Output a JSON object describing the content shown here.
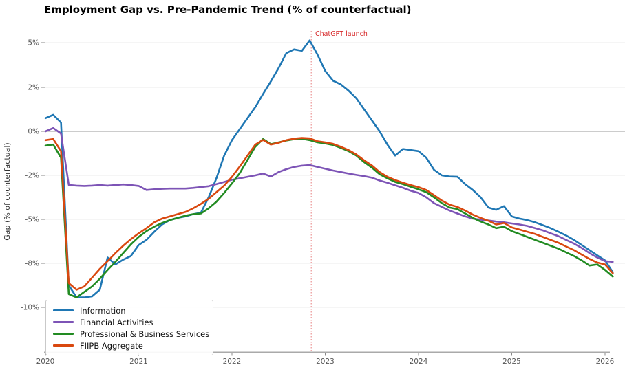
{
  "title": "Employment Gap vs. Pre-Pandemic Trend (% of counterfactual)",
  "axes": {
    "ylabel": "Gap (% of counterfactual)",
    "x_tick_labels": [
      "2020",
      "2021",
      "2022",
      "2023",
      "2024",
      "2025",
      "2026"
    ],
    "y_tick_labels": [
      "5%",
      "2%",
      "0%",
      "-2%",
      "-5%",
      "-8%",
      "-10%"
    ],
    "y_tick_values": [
      5,
      2,
      0,
      -2,
      -5,
      -8,
      -10
    ]
  },
  "annotation": {
    "label": "ChatGPT launch",
    "x_year": 2022.85,
    "color": "#d62728"
  },
  "style_colors": {
    "grid": "#ebebeb",
    "zero_line": "#9a9a9a",
    "spine": "#aaaaaa",
    "tick_text": "#555555",
    "title_text": "#000000"
  },
  "chart_data": {
    "type": "line",
    "title": "Employment Gap vs. Pre-Pandemic Trend (% of counterfactual)",
    "xlabel": "",
    "ylabel": "Gap (% of counterfactual)",
    "x_start_year": 2020,
    "x_step_months": 1,
    "x_tick_years": [
      2020,
      2021,
      2022,
      2023,
      2024,
      2025,
      2026
    ],
    "y_ticks": [
      5,
      2,
      0,
      -2,
      -5,
      -8,
      -10
    ],
    "grid": "horizontal",
    "legend_position": "lower left",
    "annotation": {
      "label": "ChatGPT launch",
      "x_year": 2022.85
    },
    "series": [
      {
        "name": "Information",
        "color": "#1f77b4",
        "values": [
          0.6,
          0.75,
          0.4,
          -9.0,
          -9.55,
          -9.55,
          -9.5,
          -9.2,
          -7.6,
          -8.05,
          -7.75,
          -7.5,
          -6.75,
          -6.4,
          -5.85,
          -5.35,
          -5.05,
          -4.9,
          -4.8,
          -4.65,
          -4.55,
          -3.5,
          -2.2,
          -1.1,
          -0.4,
          0.1,
          0.6,
          1.1,
          1.7,
          2.4,
          3.3,
          4.3,
          4.55,
          4.45,
          5.15,
          4.2,
          3.1,
          2.45,
          2.2,
          1.85,
          1.5,
          1.0,
          0.5,
          0.0,
          -0.6,
          -1.1,
          -0.8,
          -0.85,
          -0.9,
          -1.2,
          -1.75,
          -2.0,
          -2.08,
          -2.1,
          -2.6,
          -3.0,
          -3.5,
          -4.2,
          -4.35,
          -4.1,
          -4.8,
          -4.95,
          -5.05,
          -5.2,
          -5.4,
          -5.6,
          -5.85,
          -6.1,
          -6.4,
          -6.75,
          -7.1,
          -7.45,
          -7.8,
          -8.4
        ]
      },
      {
        "name": "Financial Activities",
        "color": "#7d54b6",
        "values": [
          0.0,
          0.15,
          -0.1,
          -2.65,
          -2.7,
          -2.72,
          -2.7,
          -2.66,
          -2.7,
          -2.66,
          -2.62,
          -2.66,
          -2.72,
          -3.0,
          -2.95,
          -2.92,
          -2.9,
          -2.9,
          -2.9,
          -2.86,
          -2.8,
          -2.74,
          -2.6,
          -2.45,
          -2.3,
          -2.2,
          -2.1,
          -2.0,
          -1.92,
          -2.08,
          -1.85,
          -1.72,
          -1.62,
          -1.56,
          -1.53,
          -1.62,
          -1.7,
          -1.78,
          -1.85,
          -1.92,
          -1.98,
          -2.05,
          -2.16,
          -2.35,
          -2.5,
          -2.68,
          -2.85,
          -3.05,
          -3.2,
          -3.5,
          -3.9,
          -4.15,
          -4.4,
          -4.6,
          -4.8,
          -4.95,
          -5.02,
          -5.08,
          -5.15,
          -5.2,
          -5.28,
          -5.35,
          -5.45,
          -5.6,
          -5.75,
          -5.95,
          -6.15,
          -6.4,
          -6.65,
          -6.95,
          -7.3,
          -7.6,
          -7.85,
          -7.9
        ]
      },
      {
        "name": "Professional & Business Services",
        "color": "#228B22",
        "values": [
          -0.65,
          -0.6,
          -1.2,
          -9.4,
          -9.55,
          -9.3,
          -9.05,
          -8.7,
          -8.3,
          -7.9,
          -7.3,
          -6.7,
          -6.2,
          -5.8,
          -5.5,
          -5.25,
          -5.05,
          -4.9,
          -4.75,
          -4.65,
          -4.6,
          -4.25,
          -3.8,
          -3.2,
          -2.55,
          -1.9,
          -1.3,
          -0.7,
          -0.35,
          -0.58,
          -0.5,
          -0.42,
          -0.36,
          -0.34,
          -0.4,
          -0.5,
          -0.55,
          -0.62,
          -0.75,
          -0.9,
          -1.1,
          -1.4,
          -1.65,
          -1.95,
          -2.2,
          -2.45,
          -2.6,
          -2.78,
          -2.95,
          -3.15,
          -3.5,
          -3.9,
          -4.2,
          -4.3,
          -4.6,
          -4.9,
          -5.15,
          -5.35,
          -5.6,
          -5.5,
          -5.8,
          -6.0,
          -6.2,
          -6.4,
          -6.6,
          -6.8,
          -7.0,
          -7.25,
          -7.5,
          -7.8,
          -8.1,
          -8.05,
          -8.3,
          -8.6
        ]
      },
      {
        "name": "FIIPB Aggregate",
        "color": "#d9480f",
        "values": [
          -0.4,
          -0.35,
          -0.9,
          -8.9,
          -9.2,
          -9.05,
          -8.65,
          -8.25,
          -7.85,
          -7.3,
          -6.8,
          -6.35,
          -5.95,
          -5.6,
          -5.2,
          -4.95,
          -4.8,
          -4.65,
          -4.5,
          -4.25,
          -3.95,
          -3.6,
          -3.15,
          -2.7,
          -2.1,
          -1.6,
          -1.1,
          -0.6,
          -0.39,
          -0.6,
          -0.52,
          -0.4,
          -0.33,
          -0.3,
          -0.32,
          -0.45,
          -0.5,
          -0.57,
          -0.7,
          -0.85,
          -1.05,
          -1.32,
          -1.55,
          -1.85,
          -2.1,
          -2.32,
          -2.5,
          -2.66,
          -2.8,
          -3.0,
          -3.35,
          -3.72,
          -4.0,
          -4.15,
          -4.4,
          -4.68,
          -4.9,
          -5.1,
          -5.35,
          -5.25,
          -5.55,
          -5.7,
          -5.85,
          -6.0,
          -6.2,
          -6.4,
          -6.6,
          -6.85,
          -7.1,
          -7.4,
          -7.7,
          -7.95,
          -8.05,
          -8.45
        ]
      }
    ]
  }
}
